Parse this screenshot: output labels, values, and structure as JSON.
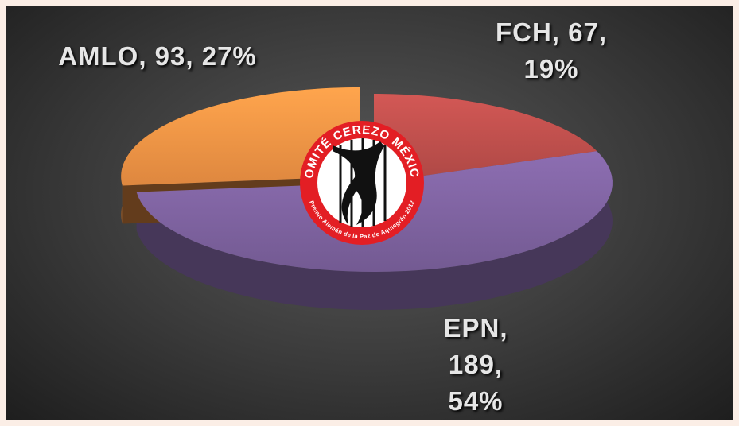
{
  "chart_data": {
    "type": "pie3d",
    "values": [
      67,
      189,
      93
    ],
    "value_labels": [
      "FCH, 67, 19%",
      "EPN, 189, 54%",
      "AMLO, 93, 27%"
    ],
    "colors": [
      "#c0504d",
      "#8064a2",
      "#f79646"
    ],
    "exploded": [
      false,
      false,
      true
    ]
  },
  "logo": {
    "title": "COMITÉ CEREZO MÉXICO",
    "subtitle": "Premio Alemán de la Paz de Aquisgrán 2012"
  }
}
